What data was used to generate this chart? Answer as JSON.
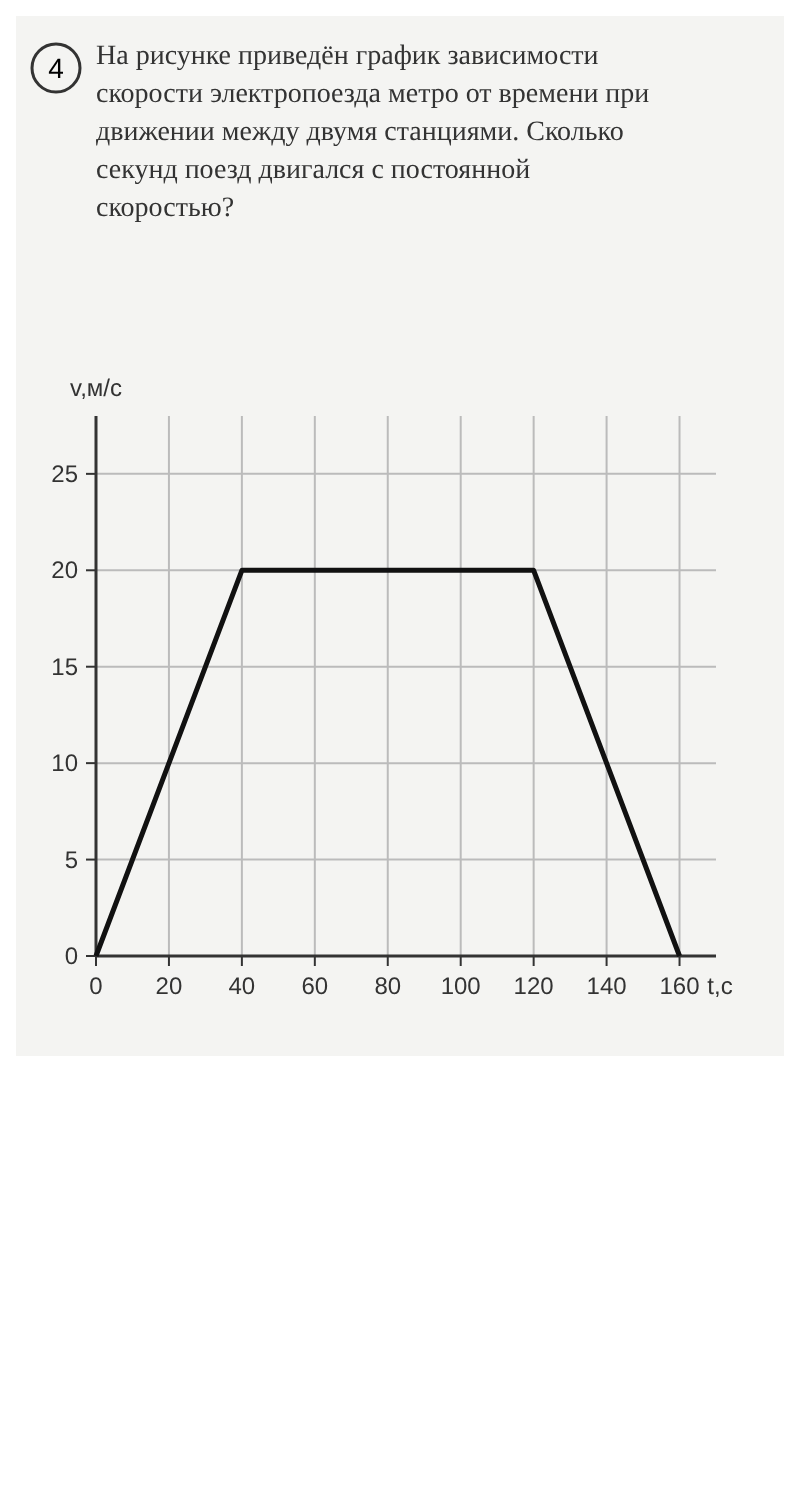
{
  "chart_data": {
    "type": "line",
    "title": "На рисунке приведён график зависимости скорости электропоезда метро от времени при движении между двумя станциями. Сколько секунд поезд двигался с постоянной скоростью?",
    "annotations": [
      "4"
    ],
    "xlabel": "t,с",
    "ylabel": "v,м/с",
    "x": [
      0,
      40,
      120,
      160
    ],
    "series": [
      {
        "color": "#111111",
        "values": [
          0,
          20,
          20,
          0
        ]
      }
    ],
    "xlim": [
      0,
      170
    ],
    "ylim": [
      0,
      28
    ],
    "xticks": [
      0,
      20,
      40,
      60,
      80,
      100,
      120,
      140,
      160
    ],
    "yticks": [
      0,
      5,
      10,
      15,
      20,
      25
    ],
    "grid": true,
    "line_style": "solid"
  }
}
